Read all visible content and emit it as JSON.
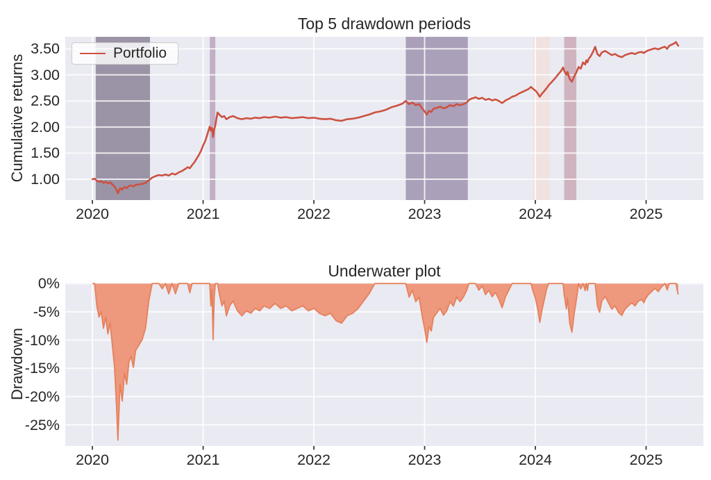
{
  "figure": {
    "background": "#ffffff",
    "axes_background": "#eaeaf2",
    "grid_color": "#ffffff",
    "text_color": "#262626",
    "tick_color": "#3a3a3a"
  },
  "chart_data": [
    {
      "id": "top-drawdown-periods",
      "type": "line",
      "title": "Top 5 drawdown periods",
      "xlabel": "",
      "ylabel": "Cumulative returns",
      "legend": {
        "position": "upper-left",
        "entries": [
          "Portfolio"
        ]
      },
      "grid": true,
      "x_unit": "decimal_year",
      "xlim": [
        2019.755,
        2025.517
      ],
      "ylim": [
        0.6,
        3.73
      ],
      "xticks": [
        2020,
        2021,
        2022,
        2023,
        2024,
        2025
      ],
      "xtick_labels": [
        "2020",
        "2021",
        "2022",
        "2023",
        "2024",
        "2025"
      ],
      "yticks": [
        1.0,
        1.5,
        2.0,
        2.5,
        3.0,
        3.5
      ],
      "ytick_labels": [
        "1.00",
        "1.50",
        "2.00",
        "2.50",
        "3.00",
        "3.50"
      ],
      "series": [
        {
          "name": "Portfolio",
          "color": "#cc5140",
          "x": [
            2020.0,
            2020.02,
            2020.04,
            2020.06,
            2020.08,
            2020.1,
            2020.12,
            2020.14,
            2020.16,
            2020.18,
            2020.2,
            2020.22,
            2020.23,
            2020.25,
            2020.27,
            2020.29,
            2020.31,
            2020.33,
            2020.35,
            2020.37,
            2020.39,
            2020.42,
            2020.45,
            2020.48,
            2020.51,
            2020.54,
            2020.57,
            2020.6,
            2020.63,
            2020.66,
            2020.69,
            2020.72,
            2020.75,
            2020.78,
            2020.81,
            2020.84,
            2020.86,
            2020.88,
            2020.9,
            2020.92,
            2020.94,
            2020.96,
            2020.98,
            2021.0,
            2021.02,
            2021.04,
            2021.06,
            2021.07,
            2021.08,
            2021.09,
            2021.1,
            2021.11,
            2021.12,
            2021.13,
            2021.15,
            2021.17,
            2021.19,
            2021.21,
            2021.24,
            2021.27,
            2021.31,
            2021.35,
            2021.39,
            2021.43,
            2021.47,
            2021.51,
            2021.55,
            2021.6,
            2021.65,
            2021.7,
            2021.75,
            2021.8,
            2021.85,
            2021.9,
            2021.95,
            2022.0,
            2022.05,
            2022.1,
            2022.15,
            2022.2,
            2022.25,
            2022.3,
            2022.35,
            2022.4,
            2022.45,
            2022.5,
            2022.55,
            2022.6,
            2022.65,
            2022.7,
            2022.75,
            2022.8,
            2022.83,
            2022.86,
            2022.89,
            2022.92,
            2022.95,
            2022.98,
            2023.0,
            2023.02,
            2023.04,
            2023.06,
            2023.08,
            2023.11,
            2023.14,
            2023.17,
            2023.2,
            2023.23,
            2023.26,
            2023.29,
            2023.32,
            2023.35,
            2023.38,
            2023.4,
            2023.43,
            2023.46,
            2023.49,
            2023.52,
            2023.55,
            2023.58,
            2023.61,
            2023.64,
            2023.67,
            2023.7,
            2023.73,
            2023.76,
            2023.79,
            2023.82,
            2023.85,
            2023.88,
            2023.91,
            2023.94,
            2023.96,
            2023.98,
            2024.0,
            2024.02,
            2024.04,
            2024.06,
            2024.08,
            2024.1,
            2024.12,
            2024.15,
            2024.18,
            2024.21,
            2024.23,
            2024.25,
            2024.26,
            2024.28,
            2024.29,
            2024.31,
            2024.33,
            2024.35,
            2024.37,
            2024.39,
            2024.41,
            2024.43,
            2024.45,
            2024.46,
            2024.47,
            2024.48,
            2024.5,
            2024.52,
            2024.54,
            2024.56,
            2024.58,
            2024.6,
            2024.63,
            2024.66,
            2024.69,
            2024.72,
            2024.75,
            2024.78,
            2024.81,
            2024.84,
            2024.87,
            2024.9,
            2024.93,
            2024.96,
            2024.98,
            2025.0,
            2025.02,
            2025.05,
            2025.08,
            2025.11,
            2025.14,
            2025.17,
            2025.19,
            2025.21,
            2025.23,
            2025.25,
            2025.27,
            2025.28,
            2025.29
          ],
          "y": [
            1.0,
            1.01,
            0.97,
            0.95,
            0.96,
            0.93,
            0.95,
            0.92,
            0.94,
            0.9,
            0.86,
            0.78,
            0.73,
            0.83,
            0.8,
            0.85,
            0.83,
            0.87,
            0.88,
            0.86,
            0.89,
            0.9,
            0.91,
            0.93,
            0.98,
            1.03,
            1.06,
            1.08,
            1.07,
            1.09,
            1.07,
            1.11,
            1.09,
            1.13,
            1.16,
            1.2,
            1.23,
            1.21,
            1.27,
            1.32,
            1.39,
            1.46,
            1.54,
            1.65,
            1.74,
            1.87,
            2.01,
            1.93,
            1.99,
            1.81,
            1.96,
            2.03,
            2.16,
            2.28,
            2.23,
            2.19,
            2.21,
            2.15,
            2.19,
            2.21,
            2.17,
            2.15,
            2.17,
            2.16,
            2.18,
            2.17,
            2.19,
            2.18,
            2.2,
            2.18,
            2.19,
            2.17,
            2.18,
            2.19,
            2.17,
            2.18,
            2.16,
            2.15,
            2.16,
            2.13,
            2.12,
            2.15,
            2.16,
            2.18,
            2.21,
            2.24,
            2.28,
            2.3,
            2.33,
            2.38,
            2.41,
            2.45,
            2.5,
            2.44,
            2.47,
            2.42,
            2.44,
            2.35,
            2.3,
            2.24,
            2.31,
            2.29,
            2.35,
            2.37,
            2.39,
            2.36,
            2.38,
            2.42,
            2.4,
            2.44,
            2.42,
            2.44,
            2.47,
            2.52,
            2.55,
            2.57,
            2.54,
            2.56,
            2.52,
            2.54,
            2.51,
            2.53,
            2.5,
            2.46,
            2.51,
            2.54,
            2.58,
            2.6,
            2.64,
            2.67,
            2.7,
            2.73,
            2.77,
            2.73,
            2.7,
            2.65,
            2.58,
            2.64,
            2.69,
            2.74,
            2.8,
            2.87,
            2.94,
            3.02,
            3.07,
            3.14,
            3.08,
            3.0,
            3.06,
            2.92,
            2.87,
            2.97,
            3.05,
            3.15,
            3.12,
            3.24,
            3.2,
            3.28,
            3.24,
            3.3,
            3.36,
            3.44,
            3.54,
            3.4,
            3.36,
            3.43,
            3.46,
            3.42,
            3.38,
            3.4,
            3.36,
            3.34,
            3.38,
            3.4,
            3.42,
            3.4,
            3.43,
            3.44,
            3.42,
            3.45,
            3.47,
            3.49,
            3.51,
            3.49,
            3.52,
            3.54,
            3.5,
            3.56,
            3.58,
            3.6,
            3.63,
            3.59,
            3.56
          ]
        }
      ],
      "bands": [
        {
          "rank": 1,
          "start": 2020.03,
          "end": 2020.52,
          "color": "#9b94a6",
          "max_drawdown_pct": -27.7
        },
        {
          "rank": 3,
          "start": 2021.06,
          "end": 2021.11,
          "color": "#c0afc7",
          "max_drawdown_pct": -10.0
        },
        {
          "rank": 2,
          "start": 2022.83,
          "end": 2023.39,
          "color": "#aba0b9",
          "max_drawdown_pct": -10.4
        },
        {
          "rank": 5,
          "start": 2023.98,
          "end": 2024.13,
          "color": "#f0e2e0",
          "max_drawdown_pct": -6.9
        },
        {
          "rank": 4,
          "start": 2024.26,
          "end": 2024.37,
          "color": "#cfb3bf",
          "max_drawdown_pct": -8.6
        }
      ]
    },
    {
      "id": "underwater",
      "type": "area",
      "title": "Underwater plot",
      "xlabel": "",
      "ylabel": "Drawdown",
      "grid": true,
      "x_unit": "decimal_year",
      "xlim": [
        2019.755,
        2025.517
      ],
      "ylim": [
        -28.75,
        0.15
      ],
      "xticks": [
        2020,
        2021,
        2022,
        2023,
        2024,
        2025
      ],
      "xtick_labels": [
        "2020",
        "2021",
        "2022",
        "2023",
        "2024",
        "2025"
      ],
      "yticks": [
        0,
        -5,
        -10,
        -15,
        -20,
        -25
      ],
      "ytick_labels": [
        "0%",
        "-5%",
        "-10%",
        "-15%",
        "-20%",
        "-25%"
      ],
      "fill_color": "#ee9377",
      "line_color": "#e5815b",
      "derivation": "drawdown_pct = (cumulative / running_max - 1) * 100, computed from chart_data[0].series[0]",
      "notable_troughs": [
        {
          "x": 2020.23,
          "drawdown_pct": -27.7
        },
        {
          "x": 2021.09,
          "drawdown_pct": -10.0
        },
        {
          "x": 2023.02,
          "drawdown_pct": -10.4
        },
        {
          "x": 2024.04,
          "drawdown_pct": -6.9
        },
        {
          "x": 2024.33,
          "drawdown_pct": -8.6
        }
      ]
    }
  ]
}
